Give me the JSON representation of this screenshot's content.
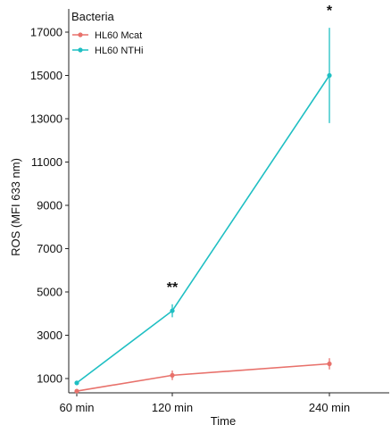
{
  "chart_data": {
    "type": "line",
    "xlabel": "Time",
    "ylabel": "ROS (MFI 633 nm)",
    "categories": [
      "60 min",
      "120 min",
      "240 min"
    ],
    "x_numeric": [
      60,
      120,
      240
    ],
    "ylim": [
      500,
      17600
    ],
    "yticks": [
      1000,
      3000,
      5000,
      7000,
      9000,
      11000,
      13000,
      15000,
      17000
    ],
    "grid": false,
    "legend": {
      "title": "Bacteria",
      "placement": "top-left"
    },
    "series": [
      {
        "name": "HL60 Mcat",
        "color": "#e8716b",
        "values": [
          420,
          1150,
          1680
        ],
        "errors": [
          100,
          220,
          260
        ]
      },
      {
        "name": "HL60 NTHi",
        "color": "#1fbfc3",
        "values": [
          800,
          4130,
          15000
        ],
        "errors": [
          100,
          300,
          2200
        ]
      }
    ],
    "annotations": [
      {
        "category": "120 min",
        "text": "**"
      },
      {
        "category": "240 min",
        "text": "*"
      }
    ]
  }
}
